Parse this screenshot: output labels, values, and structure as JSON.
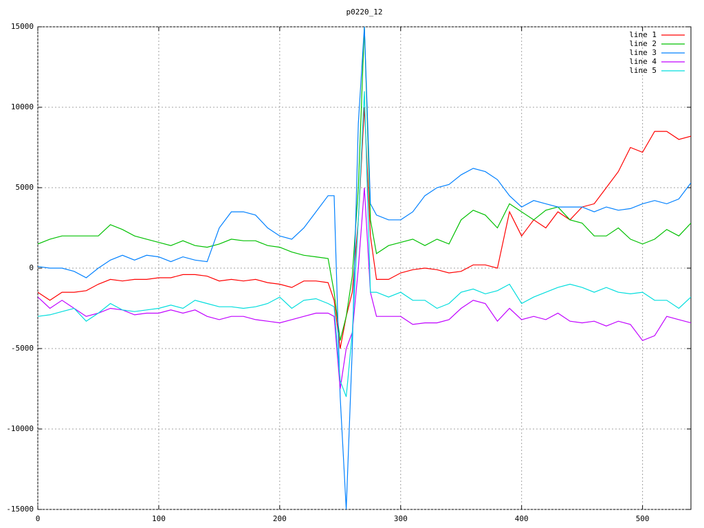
{
  "chart_data": {
    "type": "line",
    "title": "p0220_12",
    "x": [
      0,
      10,
      20,
      30,
      40,
      50,
      60,
      70,
      80,
      90,
      100,
      110,
      120,
      130,
      140,
      150,
      160,
      170,
      180,
      190,
      200,
      210,
      220,
      230,
      240,
      245,
      250,
      255,
      260,
      265,
      270,
      275,
      280,
      290,
      300,
      310,
      320,
      330,
      340,
      350,
      360,
      370,
      380,
      390,
      400,
      410,
      420,
      430,
      440,
      450,
      460,
      470,
      480,
      490,
      500,
      510,
      520,
      530,
      540
    ],
    "xlim": [
      0,
      540
    ],
    "xticks": [
      0,
      100,
      200,
      300,
      400,
      500
    ],
    "ylim": [
      -15000,
      15000
    ],
    "yticks": [
      -15000,
      -10000,
      -5000,
      0,
      5000,
      10000,
      15000
    ],
    "grid": true,
    "legend": "top-right",
    "series": [
      {
        "name": "line 1",
        "color": "#ff0000",
        "values": [
          -1500,
          -2000,
          -1500,
          -1500,
          -1400,
          -1000,
          -700,
          -800,
          -700,
          -700,
          -600,
          -600,
          -400,
          -400,
          -500,
          -800,
          -700,
          -800,
          -700,
          -900,
          -1000,
          -1200,
          -800,
          -800,
          -900,
          -2000,
          -5000,
          -3000,
          -1500,
          3000,
          10000,
          2000,
          -700,
          -700,
          -300,
          -100,
          0,
          -100,
          -300,
          -200,
          200,
          200,
          0,
          3500,
          2000,
          3000,
          2500,
          3500,
          3000,
          3800,
          4000,
          5000,
          6000,
          7500,
          7200,
          8500,
          8500,
          8000,
          8200
        ]
      },
      {
        "name": "line 2",
        "color": "#00c000",
        "values": [
          1500,
          1800,
          2000,
          2000,
          2000,
          2000,
          2700,
          2400,
          2000,
          1800,
          1600,
          1400,
          1700,
          1400,
          1300,
          1500,
          1800,
          1700,
          1700,
          1400,
          1300,
          1000,
          800,
          700,
          600,
          -1500,
          -4500,
          -3000,
          -500,
          5000,
          15000,
          3000,
          900,
          1400,
          1600,
          1800,
          1400,
          1800,
          1500,
          3000,
          3600,
          3300,
          2500,
          4000,
          3500,
          3000,
          3600,
          3800,
          3000,
          2800,
          2000,
          2000,
          2500,
          1800,
          1500,
          1800,
          2400,
          2000,
          2800
        ]
      },
      {
        "name": "line 3",
        "color": "#0080ff",
        "values": [
          100,
          0,
          0,
          -200,
          -600,
          0,
          500,
          800,
          500,
          800,
          700,
          400,
          700,
          500,
          400,
          2500,
          3500,
          3500,
          3300,
          2500,
          2000,
          1800,
          2500,
          3500,
          4500,
          4500,
          -8000,
          -15000,
          -5000,
          9000,
          15000,
          4000,
          3300,
          3000,
          3000,
          3500,
          4500,
          5000,
          5200,
          5800,
          6200,
          6000,
          5500,
          4500,
          3800,
          4200,
          4000,
          3800,
          3800,
          3800,
          3500,
          3800,
          3600,
          3700,
          4000,
          4200,
          4000,
          4300,
          5300
        ]
      },
      {
        "name": "line 4",
        "color": "#c000ff",
        "values": [
          -1800,
          -2500,
          -2000,
          -2500,
          -3000,
          -2800,
          -2500,
          -2600,
          -2900,
          -2800,
          -2800,
          -2600,
          -2800,
          -2600,
          -3000,
          -3200,
          -3000,
          -3000,
          -3200,
          -3300,
          -3400,
          -3200,
          -3000,
          -2800,
          -2800,
          -3000,
          -7500,
          -5000,
          -4000,
          0,
          5000,
          -1500,
          -3000,
          -3000,
          -3000,
          -3500,
          -3400,
          -3400,
          -3200,
          -2500,
          -2000,
          -2200,
          -3300,
          -2500,
          -3200,
          -3000,
          -3200,
          -2800,
          -3300,
          -3400,
          -3300,
          -3600,
          -3300,
          -3500,
          -4500,
          -4200,
          -3000,
          -3200,
          -3400
        ]
      },
      {
        "name": "line 5",
        "color": "#00dddd",
        "values": [
          -3000,
          -2900,
          -2700,
          -2500,
          -3300,
          -2800,
          -2200,
          -2600,
          -2700,
          -2600,
          -2500,
          -2300,
          -2500,
          -2000,
          -2200,
          -2400,
          -2400,
          -2500,
          -2400,
          -2200,
          -1800,
          -2500,
          -2000,
          -1900,
          -2200,
          -2400,
          -7000,
          -8000,
          -4000,
          3000,
          11000,
          -1500,
          -1500,
          -1800,
          -1500,
          -2000,
          -2000,
          -2500,
          -2200,
          -1500,
          -1300,
          -1600,
          -1400,
          -1000,
          -2200,
          -1800,
          -1500,
          -1200,
          -1000,
          -1200,
          -1500,
          -1200,
          -1500,
          -1600,
          -1500,
          -2000,
          -2000,
          -2500,
          -1800
        ]
      }
    ]
  }
}
